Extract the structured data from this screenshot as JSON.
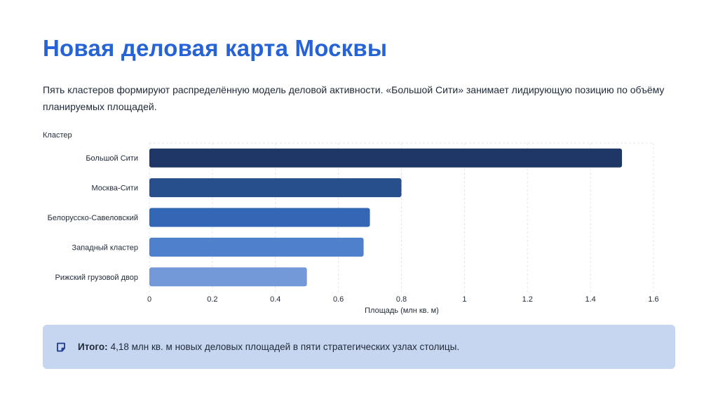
{
  "title": "Новая деловая карта Москвы",
  "subtitle": "Пять кластеров формируют распределённую модель деловой активности. «Большой Сити» занимает лидирующую позицию по объёму планируемых площадей.",
  "colors": {
    "title": "#2563d6",
    "bars": [
      "#1f3766",
      "#264f8c",
      "#3366b5",
      "#4f80cc",
      "#7499d9"
    ],
    "callout_bg": "#c6d6f0",
    "grid": "#e1e5ec"
  },
  "chart_data": {
    "type": "bar",
    "orientation": "horizontal",
    "ylabel": "Кластер",
    "xlabel": "Площадь (млн кв. м)",
    "categories": [
      "Большой Сити",
      "Москва-Сити",
      "Белорусско-Савеловский",
      "Западный кластер",
      "Рижский грузовой двор"
    ],
    "values": [
      1.5,
      0.8,
      0.7,
      0.68,
      0.5
    ],
    "xlim": [
      0,
      1.6
    ],
    "xticks": [
      "0",
      "0.2",
      "0.4",
      "0.6",
      "0.8",
      "1",
      "1.2",
      "1.4",
      "1.6"
    ],
    "grid": true
  },
  "callout": {
    "icon": "note-icon",
    "label": "Итого:",
    "text": "4,18 млн кв. м новых деловых площадей в пяти стратегических узлах столицы."
  }
}
